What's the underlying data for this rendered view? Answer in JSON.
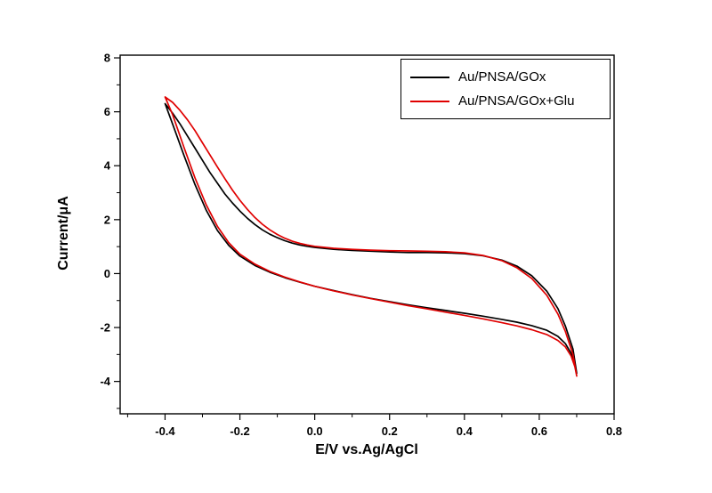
{
  "chart_data": {
    "type": "line",
    "title": "",
    "xlabel": "E/V vs.Ag/AgCl",
    "ylabel": "Current/μA",
    "xlim": [
      -0.52,
      0.8
    ],
    "ylim": [
      -5.2,
      8.1
    ],
    "grid": false,
    "x_ticks": [
      -0.4,
      -0.2,
      0.0,
      0.2,
      0.4,
      0.6,
      0.8
    ],
    "x_tick_labels": [
      "-0.4",
      "-0.2",
      "0.0",
      "0.2",
      "0.4",
      "0.6",
      "0.8"
    ],
    "y_ticks": [
      -4,
      -2,
      0,
      2,
      4,
      6,
      8
    ],
    "y_tick_labels": [
      "-4",
      "-2",
      "0",
      "2",
      "4",
      "6",
      "8"
    ],
    "x_minor_ticks": [
      -0.5,
      -0.3,
      -0.1,
      0.1,
      0.3,
      0.5,
      0.7
    ],
    "y_minor_ticks": [
      -5,
      -3,
      -1,
      1,
      3,
      5,
      7
    ],
    "legend": {
      "position": "top-right",
      "entries": [
        {
          "label": "Au/PNSA/GOx",
          "color": "#000000"
        },
        {
          "label": "Au/PNSA/GOx+Glu",
          "color": "#e00000"
        }
      ]
    },
    "series": [
      {
        "name": "Au/PNSA/GOx",
        "color": "#000000",
        "closed": true,
        "points": [
          [
            -0.4,
            6.3
          ],
          [
            -0.38,
            5.95
          ],
          [
            -0.36,
            5.55
          ],
          [
            -0.34,
            5.1
          ],
          [
            -0.32,
            4.65
          ],
          [
            -0.3,
            4.2
          ],
          [
            -0.28,
            3.75
          ],
          [
            -0.26,
            3.35
          ],
          [
            -0.24,
            2.95
          ],
          [
            -0.22,
            2.62
          ],
          [
            -0.2,
            2.32
          ],
          [
            -0.18,
            2.05
          ],
          [
            -0.16,
            1.82
          ],
          [
            -0.14,
            1.62
          ],
          [
            -0.12,
            1.46
          ],
          [
            -0.1,
            1.33
          ],
          [
            -0.08,
            1.22
          ],
          [
            -0.06,
            1.13
          ],
          [
            -0.04,
            1.06
          ],
          [
            -0.02,
            1.01
          ],
          [
            0.0,
            0.97
          ],
          [
            0.05,
            0.9
          ],
          [
            0.1,
            0.86
          ],
          [
            0.15,
            0.83
          ],
          [
            0.2,
            0.8
          ],
          [
            0.25,
            0.78
          ],
          [
            0.3,
            0.78
          ],
          [
            0.35,
            0.77
          ],
          [
            0.4,
            0.74
          ],
          [
            0.45,
            0.66
          ],
          [
            0.5,
            0.5
          ],
          [
            0.54,
            0.28
          ],
          [
            0.58,
            -0.08
          ],
          [
            0.62,
            -0.65
          ],
          [
            0.65,
            -1.3
          ],
          [
            0.67,
            -1.95
          ],
          [
            0.69,
            -2.8
          ],
          [
            0.7,
            -3.7
          ],
          [
            0.695,
            -3.35
          ],
          [
            0.685,
            -2.95
          ],
          [
            0.67,
            -2.6
          ],
          [
            0.65,
            -2.33
          ],
          [
            0.62,
            -2.1
          ],
          [
            0.58,
            -1.93
          ],
          [
            0.54,
            -1.8
          ],
          [
            0.5,
            -1.7
          ],
          [
            0.45,
            -1.58
          ],
          [
            0.4,
            -1.47
          ],
          [
            0.35,
            -1.37
          ],
          [
            0.3,
            -1.27
          ],
          [
            0.25,
            -1.16
          ],
          [
            0.2,
            -1.04
          ],
          [
            0.15,
            -0.92
          ],
          [
            0.1,
            -0.78
          ],
          [
            0.05,
            -0.63
          ],
          [
            0.0,
            -0.47
          ],
          [
            -0.04,
            -0.32
          ],
          [
            -0.08,
            -0.15
          ],
          [
            -0.12,
            0.05
          ],
          [
            -0.16,
            0.3
          ],
          [
            -0.2,
            0.65
          ],
          [
            -0.23,
            1.05
          ],
          [
            -0.26,
            1.6
          ],
          [
            -0.29,
            2.35
          ],
          [
            -0.32,
            3.3
          ],
          [
            -0.35,
            4.4
          ],
          [
            -0.38,
            5.55
          ],
          [
            -0.4,
            6.3
          ]
        ]
      },
      {
        "name": "Au/PNSA/GOx+Glu",
        "color": "#e00000",
        "closed": true,
        "points": [
          [
            -0.4,
            6.55
          ],
          [
            -0.38,
            6.35
          ],
          [
            -0.36,
            6.05
          ],
          [
            -0.34,
            5.7
          ],
          [
            -0.32,
            5.3
          ],
          [
            -0.3,
            4.85
          ],
          [
            -0.28,
            4.4
          ],
          [
            -0.26,
            3.95
          ],
          [
            -0.24,
            3.52
          ],
          [
            -0.22,
            3.1
          ],
          [
            -0.2,
            2.72
          ],
          [
            -0.18,
            2.38
          ],
          [
            -0.16,
            2.08
          ],
          [
            -0.14,
            1.83
          ],
          [
            -0.12,
            1.62
          ],
          [
            -0.1,
            1.45
          ],
          [
            -0.08,
            1.31
          ],
          [
            -0.06,
            1.2
          ],
          [
            -0.04,
            1.12
          ],
          [
            -0.02,
            1.06
          ],
          [
            0.0,
            1.01
          ],
          [
            0.05,
            0.94
          ],
          [
            0.1,
            0.9
          ],
          [
            0.15,
            0.87
          ],
          [
            0.2,
            0.85
          ],
          [
            0.25,
            0.84
          ],
          [
            0.3,
            0.83
          ],
          [
            0.35,
            0.81
          ],
          [
            0.4,
            0.77
          ],
          [
            0.45,
            0.67
          ],
          [
            0.5,
            0.48
          ],
          [
            0.54,
            0.22
          ],
          [
            0.58,
            -0.18
          ],
          [
            0.62,
            -0.8
          ],
          [
            0.65,
            -1.5
          ],
          [
            0.67,
            -2.15
          ],
          [
            0.69,
            -3.0
          ],
          [
            0.7,
            -3.8
          ],
          [
            0.695,
            -3.45
          ],
          [
            0.685,
            -3.05
          ],
          [
            0.67,
            -2.72
          ],
          [
            0.65,
            -2.48
          ],
          [
            0.62,
            -2.26
          ],
          [
            0.58,
            -2.08
          ],
          [
            0.54,
            -1.94
          ],
          [
            0.5,
            -1.82
          ],
          [
            0.45,
            -1.68
          ],
          [
            0.4,
            -1.55
          ],
          [
            0.35,
            -1.43
          ],
          [
            0.3,
            -1.31
          ],
          [
            0.25,
            -1.19
          ],
          [
            0.2,
            -1.06
          ],
          [
            0.15,
            -0.93
          ],
          [
            0.1,
            -0.79
          ],
          [
            0.05,
            -0.64
          ],
          [
            0.0,
            -0.47
          ],
          [
            -0.04,
            -0.31
          ],
          [
            -0.08,
            -0.13
          ],
          [
            -0.12,
            0.08
          ],
          [
            -0.16,
            0.35
          ],
          [
            -0.2,
            0.72
          ],
          [
            -0.23,
            1.15
          ],
          [
            -0.26,
            1.75
          ],
          [
            -0.29,
            2.55
          ],
          [
            -0.32,
            3.55
          ],
          [
            -0.35,
            4.7
          ],
          [
            -0.38,
            5.9
          ],
          [
            -0.4,
            6.55
          ]
        ]
      }
    ]
  }
}
